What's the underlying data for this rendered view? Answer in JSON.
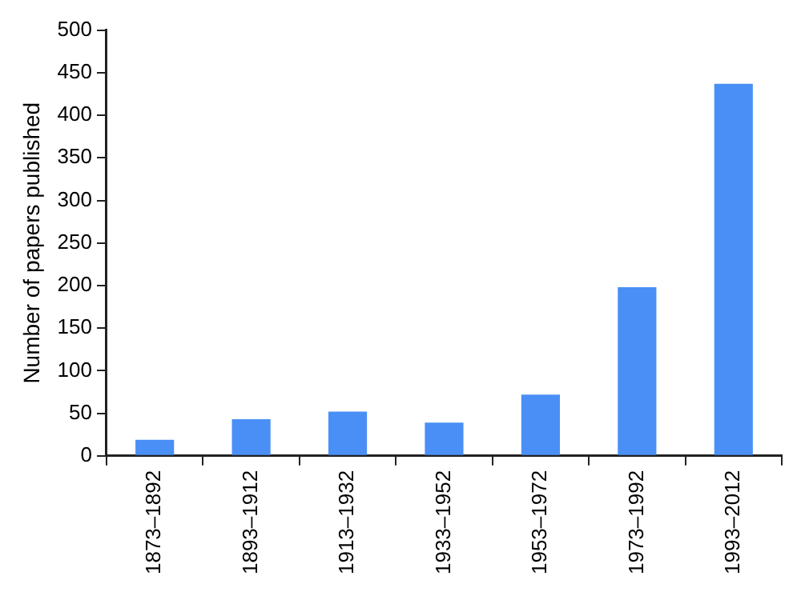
{
  "chart_data": {
    "type": "bar",
    "ylabel": "Number of papers published",
    "categories": [
      "1873–1892",
      "1893–1912",
      "1913–1932",
      "1933–1952",
      "1953–1972",
      "1973–1992",
      "1993–2012"
    ],
    "values": [
      19,
      43,
      52,
      39,
      72,
      198,
      437
    ],
    "color": "#4a8ff5",
    "ylim": [
      0,
      500
    ],
    "yticks": [
      0,
      50,
      100,
      150,
      200,
      250,
      300,
      350,
      400,
      450,
      500
    ],
    "grid": false,
    "legend": false
  }
}
